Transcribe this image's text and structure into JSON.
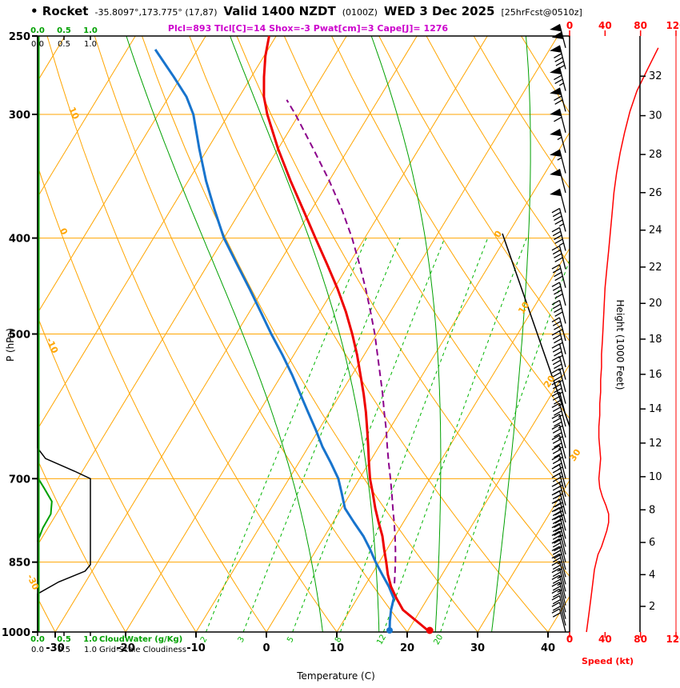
{
  "header": {
    "station": "• Rocket",
    "coords": "-35.8097°,173.775° (17,87)",
    "valid": "Valid 1400 NZDT",
    "valid_z": "(0100Z)",
    "date": "WED 3 Dec 2025",
    "fcst": "[25hrFcst@0510z]",
    "indices": "Plcl=893 Tlcl[C]=14 Shox=-3 Pwat[cm]=3 Cape[J]= 1276"
  },
  "axis_labels": {
    "pressure": "P (hPa)",
    "temperature": "Temperature (C)",
    "height": "Height (1000 Feet)",
    "speed": "Speed (kt)",
    "cloudwater": "CloudWater (g/Kg)",
    "cloudiness": "Grid-Scale Cloudiness"
  },
  "colors": {
    "temperature": "#ee0000",
    "dewpoint": "#1874cd",
    "parcel": "#8b008b",
    "grid": "#ffa500",
    "moist": "#00a000",
    "mixing": "#00b400",
    "cloudwater": "#00a000",
    "cloudiness": "#000000",
    "speed": "#ff0000",
    "indices": "#cc00cc"
  },
  "chart_data": {
    "type": "line",
    "subtype": "skew-t-log-p-sounding",
    "title": "• Rocket -35.8097°,173.775° (17,87) Valid 1400 NZDT (0100Z) WED 3 Dec 2025 [25hrFcst@0510z]",
    "pressure_axis": {
      "ticks": [
        250,
        300,
        400,
        500,
        700,
        850,
        1000
      ],
      "range": [
        250,
        1000
      ],
      "scale": "log"
    },
    "temperature_axis": {
      "ticks": [
        -30,
        -20,
        -10,
        0,
        10,
        20,
        30,
        40
      ],
      "unit": "C"
    },
    "height_axis": {
      "ticks": [
        2,
        4,
        6,
        8,
        10,
        12,
        14,
        16,
        18,
        20,
        22,
        24,
        26,
        28,
        30,
        32
      ],
      "unit": "1000 ft"
    },
    "speed_axis": {
      "ticks": [
        0,
        40,
        80,
        120
      ],
      "max": 120,
      "unit": "kt"
    },
    "cloud_axis": {
      "ticks": [
        "0.0",
        "0.5",
        "1.0"
      ]
    },
    "grid": {
      "isotherm_step": 10,
      "isotherm_labels": [
        0,
        10,
        20,
        30
      ],
      "dry_adiabat_labels": [
        {
          "value": 10,
          "p": 300
        },
        {
          "value": 0,
          "p": 395
        },
        {
          "value": -10,
          "p": 515
        },
        {
          "value": -30,
          "p": 893
        }
      ],
      "mixing_ratio_lines": [
        2,
        3,
        5,
        8,
        12,
        20
      ],
      "moist_adiabats": [
        8,
        16,
        24,
        32
      ]
    },
    "temperature_curve": [
      [
        1000,
        23.2
      ],
      [
        975,
        20.4
      ],
      [
        950,
        17.5
      ],
      [
        925,
        15.6
      ],
      [
        900,
        13.8
      ],
      [
        875,
        12.3
      ],
      [
        850,
        11.0
      ],
      [
        825,
        9.6
      ],
      [
        800,
        8.2
      ],
      [
        775,
        6.5
      ],
      [
        750,
        4.8
      ],
      [
        725,
        3.2
      ],
      [
        700,
        1.5
      ],
      [
        675,
        0.0
      ],
      [
        650,
        -1.5
      ],
      [
        625,
        -3.1
      ],
      [
        600,
        -4.8
      ],
      [
        575,
        -6.7
      ],
      [
        550,
        -8.8
      ],
      [
        525,
        -11.0
      ],
      [
        500,
        -13.5
      ],
      [
        475,
        -16.3
      ],
      [
        450,
        -19.5
      ],
      [
        425,
        -23.1
      ],
      [
        400,
        -27.0
      ],
      [
        375,
        -31.1
      ],
      [
        350,
        -35.5
      ],
      [
        325,
        -40.0
      ],
      [
        300,
        -44.5
      ],
      [
        288,
        -46.5
      ],
      [
        275,
        -48.2
      ],
      [
        262,
        -49.8
      ],
      [
        250,
        -51.0
      ]
    ],
    "dewpoint_curve": [
      [
        1000,
        17.5
      ],
      [
        975,
        16.6
      ],
      [
        950,
        15.8
      ],
      [
        925,
        15.2
      ],
      [
        900,
        13.5
      ],
      [
        875,
        11.5
      ],
      [
        850,
        9.5
      ],
      [
        825,
        7.6
      ],
      [
        800,
        5.5
      ],
      [
        775,
        3.0
      ],
      [
        750,
        0.5
      ],
      [
        725,
        -1.2
      ],
      [
        700,
        -3.0
      ],
      [
        675,
        -5.4
      ],
      [
        650,
        -8.0
      ],
      [
        625,
        -10.4
      ],
      [
        600,
        -13.0
      ],
      [
        575,
        -15.7
      ],
      [
        550,
        -18.5
      ],
      [
        525,
        -21.6
      ],
      [
        500,
        -25.0
      ],
      [
        475,
        -28.4
      ],
      [
        450,
        -32.0
      ],
      [
        425,
        -35.9
      ],
      [
        400,
        -40.0
      ],
      [
        375,
        -43.7
      ],
      [
        350,
        -47.5
      ],
      [
        325,
        -51.2
      ],
      [
        300,
        -55.0
      ],
      [
        288,
        -57.5
      ],
      [
        275,
        -61.0
      ],
      [
        258,
        -66.0
      ]
    ],
    "parcel_curve": [
      [
        893,
        14.0
      ],
      [
        875,
        13.3
      ],
      [
        850,
        12.3
      ],
      [
        825,
        11.2
      ],
      [
        800,
        10.0
      ],
      [
        775,
        8.7
      ],
      [
        750,
        7.3
      ],
      [
        725,
        5.9
      ],
      [
        700,
        4.4
      ],
      [
        675,
        2.8
      ],
      [
        650,
        1.2
      ],
      [
        625,
        -0.4
      ],
      [
        600,
        -2.2
      ],
      [
        575,
        -4.0
      ],
      [
        550,
        -6.0
      ],
      [
        525,
        -8.1
      ],
      [
        500,
        -10.3
      ],
      [
        475,
        -12.8
      ],
      [
        450,
        -15.5
      ],
      [
        425,
        -18.5
      ],
      [
        400,
        -21.8
      ],
      [
        375,
        -25.6
      ],
      [
        350,
        -30.0
      ],
      [
        325,
        -35.0
      ],
      [
        300,
        -40.5
      ],
      [
        290,
        -43.0
      ]
    ],
    "winds": [
      [
        257,
        100
      ],
      [
        270,
        88
      ],
      [
        284,
        76
      ],
      [
        298,
        68
      ],
      [
        313,
        62
      ],
      [
        328,
        57
      ],
      [
        344,
        53
      ],
      [
        360,
        50
      ],
      [
        377,
        48
      ],
      [
        394,
        46
      ],
      [
        412,
        44
      ],
      [
        430,
        42
      ],
      [
        449,
        40
      ],
      [
        468,
        39
      ],
      [
        488,
        38
      ],
      [
        508,
        37
      ],
      [
        524,
        36
      ],
      [
        540,
        36
      ],
      [
        556,
        35
      ],
      [
        572,
        35
      ],
      [
        588,
        34
      ],
      [
        604,
        34
      ],
      [
        620,
        33
      ],
      [
        636,
        33
      ],
      [
        652,
        34
      ],
      [
        668,
        35
      ],
      [
        684,
        34
      ],
      [
        700,
        33
      ],
      [
        715,
        34
      ],
      [
        730,
        37
      ],
      [
        745,
        41
      ],
      [
        760,
        44
      ],
      [
        775,
        44
      ],
      [
        790,
        42
      ],
      [
        805,
        39
      ],
      [
        820,
        36
      ],
      [
        835,
        32
      ],
      [
        850,
        30
      ],
      [
        865,
        28
      ],
      [
        880,
        27
      ],
      [
        895,
        26
      ],
      [
        910,
        25
      ],
      [
        925,
        24
      ],
      [
        940,
        23
      ],
      [
        955,
        22
      ],
      [
        970,
        21
      ],
      [
        985,
        20
      ],
      [
        1000,
        19
      ]
    ],
    "cloudiness_profile": [
      [
        1000,
        0
      ],
      [
        915,
        0
      ],
      [
        890,
        0.4
      ],
      [
        868,
        0.9
      ],
      [
        855,
        1.0
      ],
      [
        700,
        1.0
      ],
      [
        688,
        0.7
      ],
      [
        668,
        0.15
      ],
      [
        652,
        0
      ],
      [
        250,
        0
      ]
    ],
    "cloudwater_profile": [
      [
        810,
        0
      ],
      [
        785,
        0.1
      ],
      [
        760,
        0.25
      ],
      [
        738,
        0.27
      ],
      [
        715,
        0.12
      ],
      [
        698,
        0
      ]
    ],
    "surface_dots": {
      "temperature": [
        1000,
        23.2
      ],
      "dewpoint": [
        1000,
        17.5
      ]
    }
  }
}
